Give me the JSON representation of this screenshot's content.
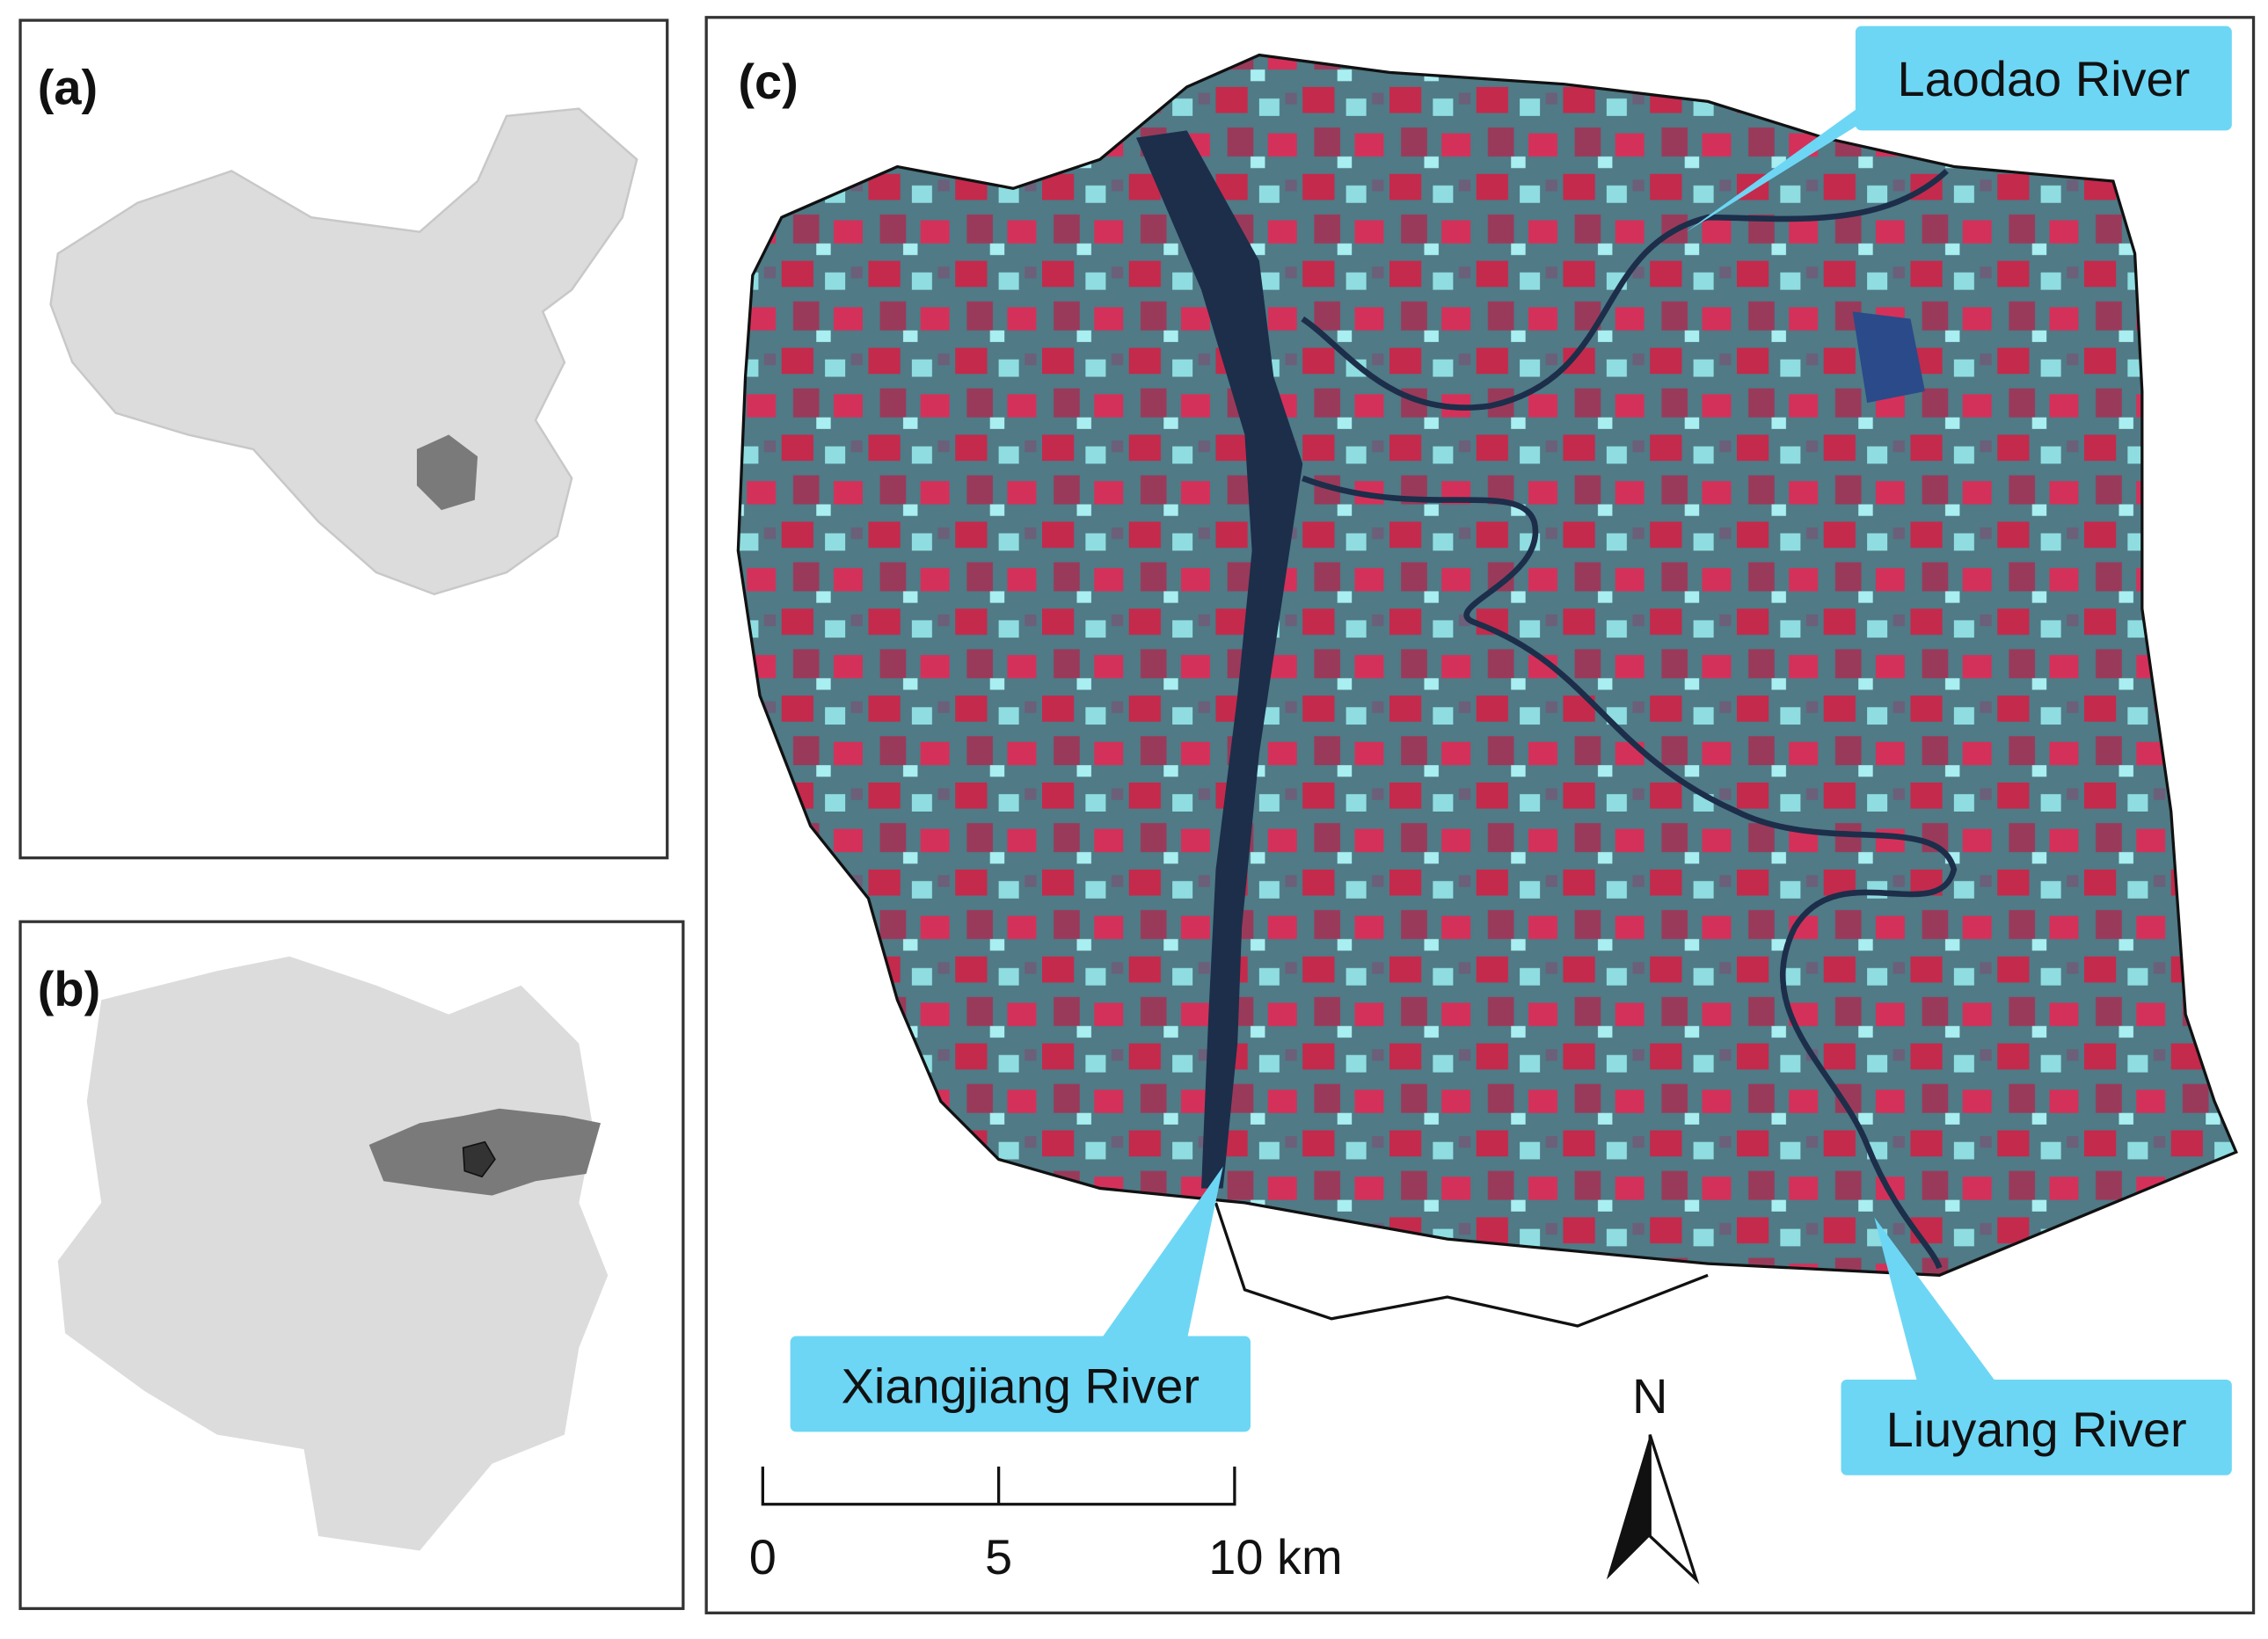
{
  "panels": {
    "a": {
      "label": "(a)"
    },
    "b": {
      "label": "(b)"
    },
    "c": {
      "label": "(c)"
    }
  },
  "rivers": [
    "Laodao River",
    "Xiangjiang River",
    "Liuyang River"
  ],
  "scale_bar": {
    "labels": [
      "0",
      "5",
      "10 km"
    ]
  },
  "north_arrow": {
    "label": "N"
  }
}
